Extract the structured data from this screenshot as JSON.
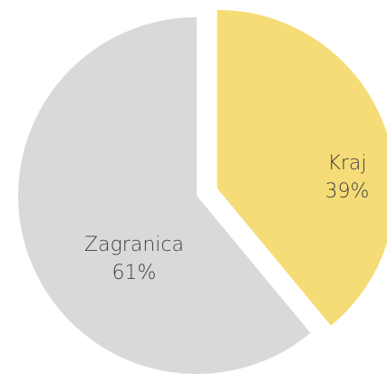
{
  "chart_data": {
    "type": "pie",
    "categories": [
      "Kraj",
      "Zagranica"
    ],
    "values": [
      39,
      61
    ],
    "value_labels": [
      "39%",
      "61%"
    ],
    "colors": [
      "#f6dc77",
      "#d9d9d9"
    ]
  }
}
